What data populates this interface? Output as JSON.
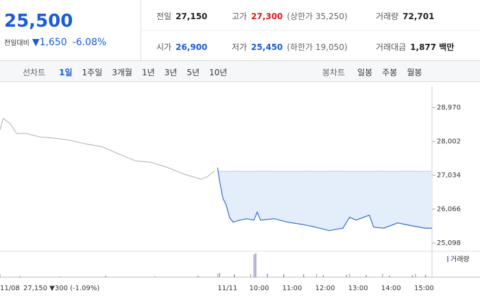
{
  "header": {
    "price": "25,500",
    "change_label": "전일대비",
    "change": "▼1,650",
    "change_pct": "-6.08%",
    "stats": [
      {
        "label": "전일",
        "value": "27,150",
        "color": "#222"
      },
      {
        "label": "고가",
        "value": "27,300",
        "note": "(상한가 35,250)",
        "color": "#e0161c"
      },
      {
        "label": "거래량",
        "value": "72,701",
        "color": "#222"
      },
      {
        "label": "시가",
        "value": "26,900",
        "color": "#1a5bd6"
      },
      {
        "label": "저가",
        "value": "25,450",
        "note": "(하한가 19,050)",
        "color": "#1a5bd6"
      },
      {
        "label": "거래대금",
        "value": "1,877 백만",
        "color": "#222"
      }
    ]
  },
  "tabs": {
    "line_label": "선차트",
    "line": [
      "1일",
      "1주일",
      "3개월",
      "1년",
      "3년",
      "5년",
      "10년"
    ],
    "selected": 0,
    "candle_label": "봉차트",
    "candle": [
      "일봉",
      "주봉",
      "월봉"
    ]
  },
  "chart_data": {
    "type": "line",
    "prev_summary": "27,150 ▼300 (-1.09%)",
    "prev_close": 27150,
    "xlim": [
      2.4,
      15.5
    ],
    "ylim": [
      24900,
      29600
    ],
    "xticks": [
      {
        "value": 2.4,
        "label": "11/08"
      },
      {
        "value": 9,
        "label": "11/11"
      },
      {
        "value": 10,
        "label": "10:00"
      },
      {
        "value": 11,
        "label": "11:00"
      },
      {
        "value": 12,
        "label": "12:00"
      },
      {
        "value": 13,
        "label": "13:00"
      },
      {
        "value": 14,
        "label": "14:00"
      },
      {
        "value": 15,
        "label": "15:00"
      }
    ],
    "yticks": [
      {
        "value": 28970,
        "label": "28,970"
      },
      {
        "value": 28002,
        "label": "28,002"
      },
      {
        "value": 27034,
        "label": "27,034"
      },
      {
        "value": 26066,
        "label": "26,066"
      },
      {
        "value": 25098,
        "label": "25,098"
      }
    ],
    "series": [
      {
        "color": "#bbbbbb",
        "x": [
          2.4,
          2.5,
          2.7,
          2.9,
          3.2,
          3.6,
          4.0,
          4.5,
          5.0,
          5.5,
          6.0,
          6.5,
          7.0,
          7.5,
          8.0,
          8.5,
          8.7,
          8.9
        ],
        "values": [
          28330,
          28660,
          28520,
          28230,
          28230,
          28130,
          28100,
          28040,
          27930,
          27850,
          27640,
          27450,
          27400,
          27250,
          27060,
          26920,
          27000,
          27150
        ]
      },
      {
        "color": "#2d6bd6",
        "x": [
          9.0,
          9.05,
          9.16,
          9.26,
          9.36,
          9.47,
          9.68,
          9.88,
          10.1,
          10.2,
          10.3,
          10.72,
          11.13,
          11.55,
          11.96,
          12.38,
          12.8,
          13.0,
          13.2,
          13.6,
          13.73,
          14.04,
          14.46,
          14.87,
          15.29,
          15.5
        ],
        "values": [
          27250,
          26920,
          26370,
          26180,
          25830,
          25690,
          25750,
          25790,
          25750,
          25980,
          25750,
          25790,
          25690,
          25630,
          25550,
          25450,
          25520,
          25830,
          25750,
          25890,
          25550,
          25520,
          25670,
          25590,
          25520,
          25520
        ]
      },
      {
        "name": "거래량",
        "axis": "volume",
        "color": "#9b8cc4",
        "ylim": [
          0,
          100
        ],
        "x": [
          3.0,
          4.2,
          5.6,
          7.1,
          8.4,
          9.05,
          9.5,
          10.1,
          10.15,
          10.5,
          11.0,
          11.6,
          12.2,
          12.9,
          13.5,
          14.2,
          14.9,
          15.3
        ],
        "values": [
          4,
          3,
          5,
          3,
          6,
          18,
          12,
          95,
          100,
          14,
          10,
          12,
          8,
          10,
          9,
          7,
          8,
          10
        ]
      }
    ]
  }
}
